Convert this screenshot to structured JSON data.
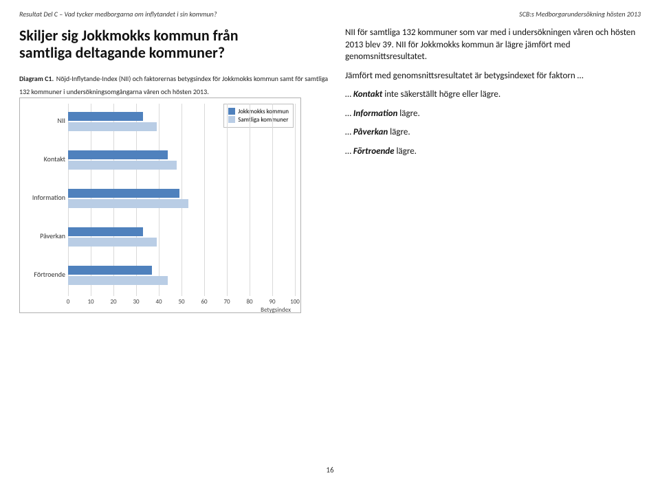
{
  "header": {
    "left": "Resultat Del C – Vad tycker medborgarna om inflytandet i sin kommun?",
    "right": "SCB:s Medborgarundersökning hösten 2013"
  },
  "heading_line1": "Skiljer sig Jokkmokks kommun från",
  "heading_line2": "samtliga deltagande kommuner?",
  "diagram_label": "Diagram C1.",
  "diagram_desc": "Nöjd-Inflytande-Index (NII) och faktorernas betygsindex för Jokkmokks kommun samt för samtliga 132 kommuner i undersökningsomgångarna våren och hösten 2013.",
  "chart": {
    "type": "bar",
    "categories": [
      "NII",
      "Kontakt",
      "Information",
      "Påverkan",
      "Förtroende"
    ],
    "series": [
      {
        "name": "Jokkmokks kommun",
        "color": "#4f81bd",
        "values": [
          33,
          44,
          49,
          33,
          37
        ]
      },
      {
        "name": "Samtliga kommuner",
        "color": "#b9cde5",
        "values": [
          39,
          48,
          53,
          39,
          44
        ]
      }
    ],
    "xlim": [
      0,
      100
    ],
    "xtick_step": 10,
    "x_title": "Betygsindex",
    "grid_color": "#d9d9d9",
    "legend_title_1": "Jokkmokks kommun",
    "legend_title_2": "Samtliga kommuner"
  },
  "body": {
    "p1": "NII för samtliga 132 kommuner som var med i undersökningen våren och hösten 2013 blev 39. NII för Jokkmokks kommun är lägre jämfört med genomsnittsresultatet.",
    "p2_pre": "Jämfört med genomsnittsresultatet är betygsindexet för faktorn …",
    "b1_pre": "… ",
    "b1_em": "Kontakt",
    "b1_post": " inte säkerställt högre eller lägre.",
    "b2_pre": "… ",
    "b2_em": "Information",
    "b2_post": " lägre.",
    "b3_pre": "… ",
    "b3_em": "Påverkan",
    "b3_post": " lägre.",
    "b4_pre": "… ",
    "b4_em": "Förtroende",
    "b4_post": " lägre."
  },
  "page_number": "16"
}
